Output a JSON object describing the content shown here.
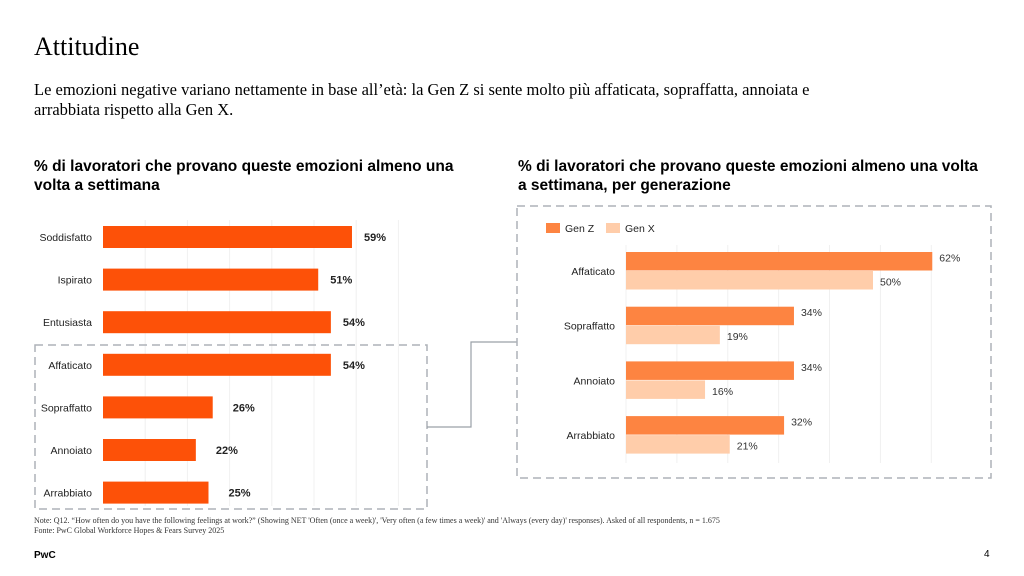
{
  "page": {
    "title": "Attitudine",
    "subtitle": "Le emozioni negative variano nettamente in base all’età: la Gen Z si sente molto più affaticata, sopraffatta, annoiata e arrabbiata rispetto alla Gen X.",
    "note": "Note: Q12. “How often do you have the following feelings at work?” (Showing NET 'Often (once a week)', 'Very often (a few times a week)' and 'Always (every day)' responses). Asked of all respondents, n = 1.675",
    "source": "Fonte: PwC Global Workforce Hopes & Fears Survey 2025",
    "brand": "PwC",
    "page_number": "4"
  },
  "colors": {
    "bar_primary": "#fd5108",
    "gen_z": "#fd8441",
    "gen_x": "#ffcdaa",
    "dashed_box": "#aeb2b8",
    "connector": "#9aa0a8",
    "gridline": "#f0f0f0"
  },
  "chart_data": [
    {
      "type": "bar",
      "orientation": "horizontal",
      "title": "% di lavoratori che provano queste emozioni almeno una volta a settimana",
      "categories": [
        "Soddisfatto",
        "Ispirato",
        "Entusiasta",
        "Affaticato",
        "Sopraffatto",
        "Annoiato",
        "Arrabbiato"
      ],
      "values": [
        59,
        51,
        54,
        54,
        26,
        22,
        25
      ],
      "labels": [
        "59%",
        "51%",
        "54%",
        "54%",
        "26%",
        "22%",
        "25%"
      ],
      "highlighted_categories": [
        "Affaticato",
        "Sopraffatto",
        "Annoiato",
        "Arrabbiato"
      ],
      "xlim": [
        0,
        70
      ],
      "grid": true,
      "xlabel": "",
      "ylabel": ""
    },
    {
      "type": "bar",
      "orientation": "horizontal",
      "title": "% di lavoratori che provano queste emozioni almeno una volta a settimana, per generazione",
      "categories": [
        "Affaticato",
        "Sopraffatto",
        "Annoiato",
        "Arrabbiato"
      ],
      "series": [
        {
          "name": "Gen Z",
          "values": [
            62,
            34,
            34,
            32
          ],
          "labels": [
            "62%",
            "34%",
            "34%",
            "32%"
          ]
        },
        {
          "name": "Gen X",
          "values": [
            50,
            19,
            16,
            21
          ],
          "labels": [
            "50%",
            "19%",
            "16%",
            "21%"
          ]
        }
      ],
      "legend": "top-left",
      "xlim": [
        0,
        62
      ],
      "grid": true,
      "xlabel": "",
      "ylabel": ""
    }
  ]
}
